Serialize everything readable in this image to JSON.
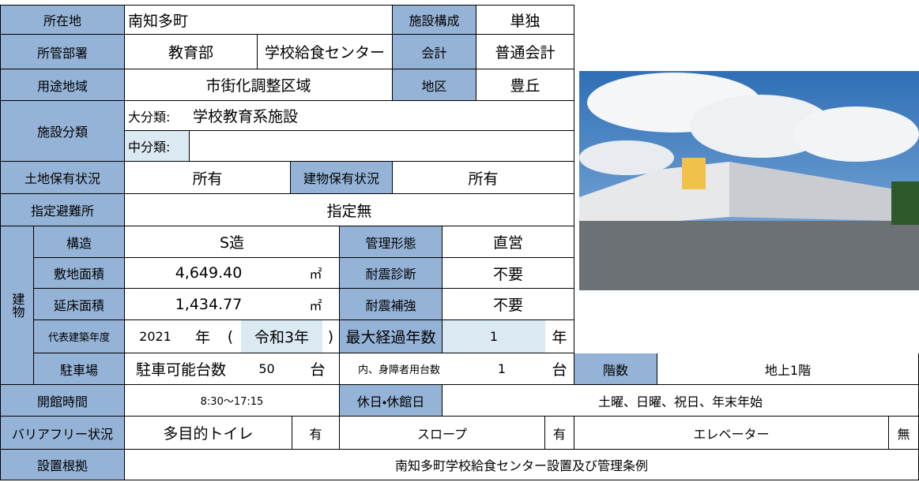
{
  "table": {
    "r0": {
      "label": "所在地",
      "location": "南知多町",
      "composition_label": "施設構成",
      "composition": "単独"
    },
    "r1": {
      "label": "所管部署",
      "department": "教育部",
      "section": "学校給食センター",
      "account_label": "会計",
      "account": "普通会計"
    },
    "r2": {
      "label": "用途地域",
      "zone": "市街化調整区域",
      "district_label": "地区",
      "district": "豊丘"
    },
    "r3": {
      "label": "施設分類",
      "major_label": "大分類:",
      "major": "学校教育系施設",
      "minor_label": "中分類:"
    },
    "r5": {
      "label": "土地保有状況",
      "land": "所有",
      "building_label": "建物保有状況",
      "building": "所有"
    },
    "r6": {
      "label": "指定避難所",
      "shelter": "指定無"
    },
    "building_label": "建物",
    "r7": {
      "label": "構造",
      "structure": "S造",
      "management_label": "管理形態",
      "management": "直営"
    },
    "r8": {
      "label": "敷地面積",
      "value": "4,649.40",
      "unit": "㎡",
      "check_label": "耐震診断",
      "check": "不要"
    },
    "r9": {
      "label": "延床面積",
      "value": "1,434.77",
      "unit": "㎡",
      "check_label": "耐震補強",
      "check": "不要"
    },
    "r10": {
      "label": "代表建築年度",
      "year": 2021,
      "year_unit": "年",
      "open": "(",
      "era": "令和3年",
      "close": ")",
      "elapsed_label": "最大経過年数",
      "elapsed": 1,
      "elapsed_unit": "年"
    },
    "r11": {
      "label": "駐車場",
      "parking_label": "駐車可能台数",
      "parking": 50,
      "parking_unit": "台",
      "disabled_label": "内、身障者用台数",
      "disabled": 1,
      "disabled_unit": "台",
      "floors_label": "階数",
      "floors": "地上1階"
    },
    "r12": {
      "label": "開館時間",
      "hours": "8:30〜17:15",
      "closed_label": "休日・休館日",
      "closed": "土曜、日曜、祝日、年末年始"
    },
    "r13": {
      "label": "バリアフリー状況",
      "toilet": "多目的トイレ",
      "toilet_has": "有",
      "slope": "スロープ",
      "slope_has": "有",
      "elevator": "エレベーター",
      "elevator_has": "無"
    },
    "r14": {
      "label": "設置根拠",
      "basis": "南知多町学校給食センター設置及び管理条例"
    }
  }
}
